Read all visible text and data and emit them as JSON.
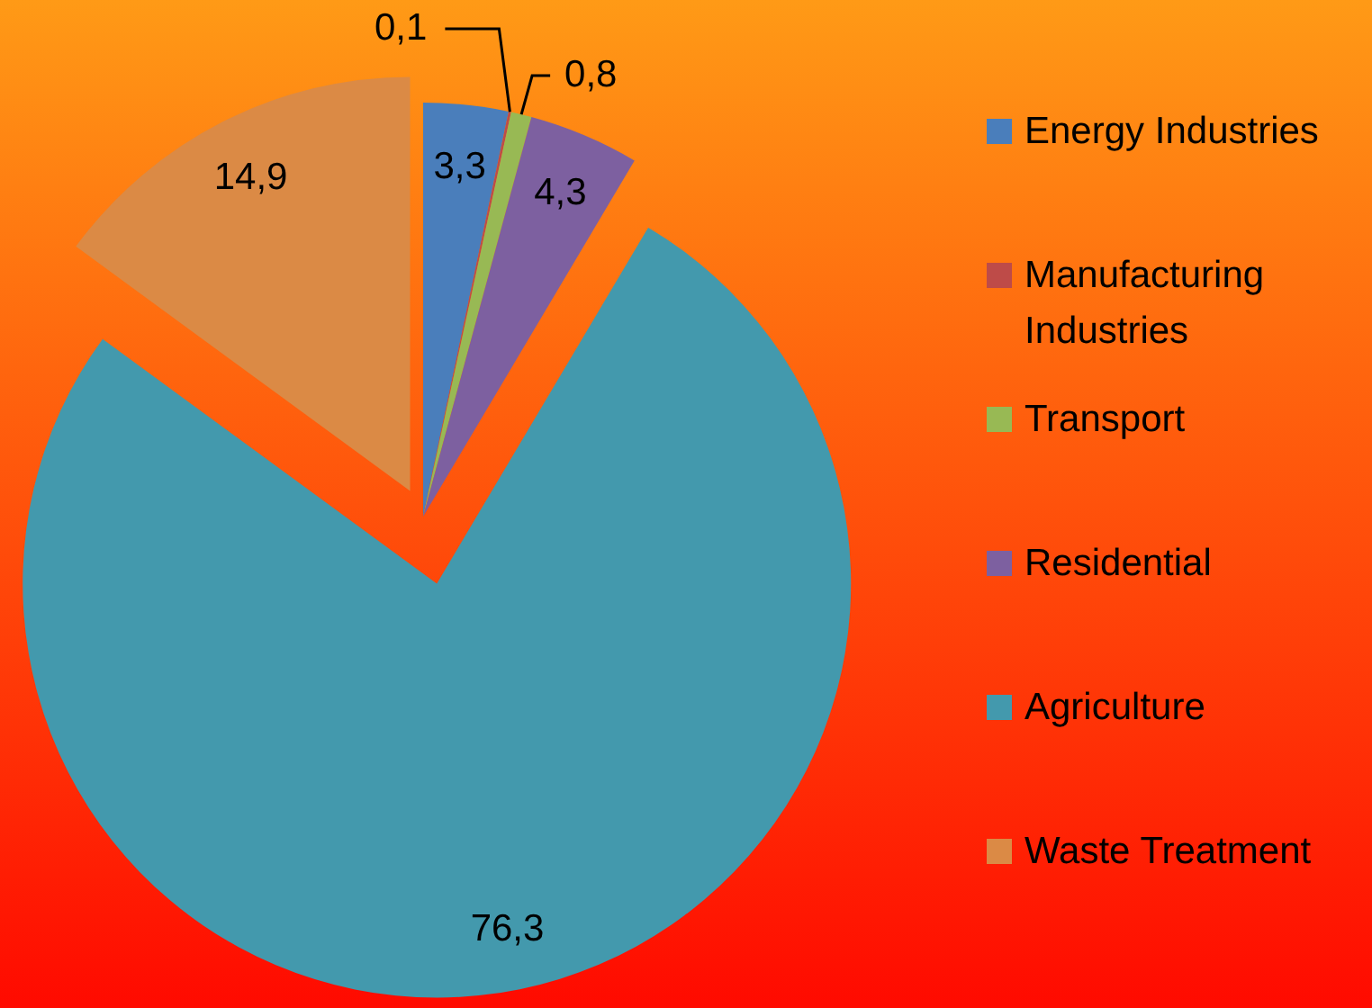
{
  "chart_data": {
    "type": "pie",
    "categories": [
      "Energy Industries",
      "Manufacturing Industries",
      "Transport",
      "Residential",
      "Agriculture",
      "Waste Treatment"
    ],
    "values": [
      3.3,
      0.1,
      0.8,
      4.3,
      76.3,
      14.9
    ],
    "value_labels": [
      "3,3",
      "0,1",
      "0,8",
      "4,3",
      "76,3",
      "14,9"
    ],
    "colors": [
      "#4a7ebb",
      "#be4b48",
      "#98b954",
      "#7d60a0",
      "#4399ad",
      "#db8a45"
    ],
    "legend": "right"
  }
}
